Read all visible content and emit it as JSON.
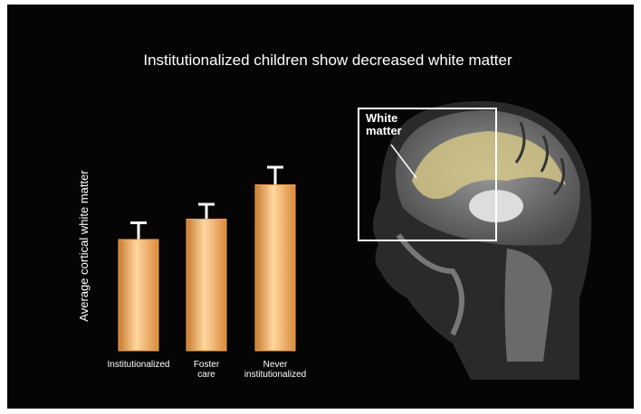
{
  "chart_data": {
    "type": "bar",
    "title": "Institutionalized children show decreased white matter",
    "y_label": "Average cortical white matter",
    "categories": [
      "Institutionalized",
      "Foster\ncare",
      "Never\ninstitutionalized"
    ],
    "values": [
      120,
      142,
      179
    ],
    "errors": [
      18,
      16,
      19
    ],
    "color": "#f0a050",
    "annotation": "White\nmatter"
  }
}
